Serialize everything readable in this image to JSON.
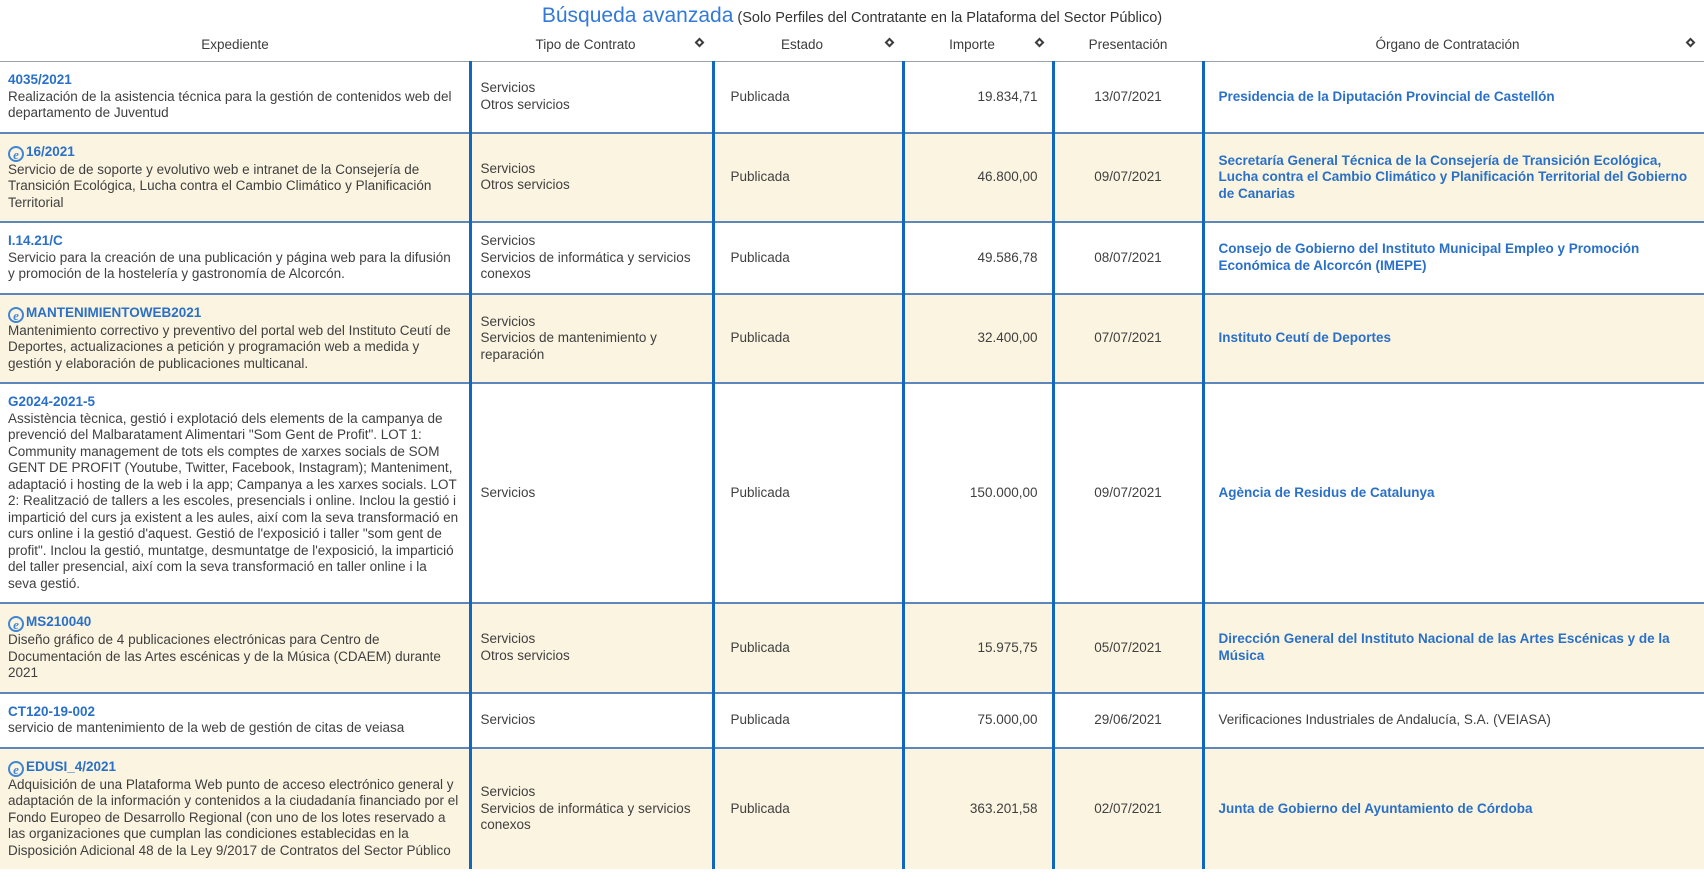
{
  "page": {
    "title": "Búsqueda avanzada",
    "subtitle": "(Solo Perfiles del Contratante en la Plataforma del Sector Público)"
  },
  "icons": {
    "electronic_glyph": "e",
    "sort_icon_shape": "diamond-outline"
  },
  "colors": {
    "title_blue": "#3379d8",
    "link_blue": "#2a70c8",
    "column_border_blue": "#0f67be",
    "row_separator_blue": "#5d87bb",
    "row_alt_background": "#fbf4e0",
    "text": "#3f3f3f"
  },
  "table": {
    "columns": [
      {
        "label": "Expediente",
        "sortable": false
      },
      {
        "label": "Tipo de Contrato",
        "sortable": true
      },
      {
        "label": "Estado",
        "sortable": true
      },
      {
        "label": "Importe",
        "sortable": true
      },
      {
        "label": "Presentación",
        "sortable": false
      },
      {
        "label": "Órgano de Contratación",
        "sortable": true
      }
    ],
    "rows": [
      {
        "expediente": "4035/2021",
        "electronic": false,
        "descripcion": "Realización de la asistencia técnica para la gestión de contenidos web del departamento de Juventud",
        "tipo": "Servicios\nOtros servicios",
        "estado": "Publicada",
        "importe": "19.834,71",
        "presentacion": "13/07/2021",
        "organo": "Presidencia de la Diputación Provincial de Castellón",
        "organo_link": true
      },
      {
        "expediente": "16/2021",
        "electronic": true,
        "descripcion": "Servicio de de soporte y evolutivo web e intranet de la Consejería de Transición Ecológica, Lucha contra el Cambio Climático y Planificación Territorial",
        "tipo": "Servicios\nOtros servicios",
        "estado": "Publicada",
        "importe": "46.800,00",
        "presentacion": "09/07/2021",
        "organo": "Secretaría General Técnica de la Consejería de Transición Ecológica, Lucha contra el Cambio Climático y Planificación Territorial del Gobierno de Canarias",
        "organo_link": true
      },
      {
        "expediente": "I.14.21/C",
        "electronic": false,
        "descripcion": "Servicio para la creación de una publicación y página web para la difusión y promoción de la hostelería y gastronomía de Alcorcón.",
        "tipo": "Servicios\nServicios de informática y servicios conexos",
        "estado": "Publicada",
        "importe": "49.586,78",
        "presentacion": "08/07/2021",
        "organo": "Consejo de Gobierno del Instituto Municipal Empleo y Promoción Económica de Alcorcón (IMEPE)",
        "organo_link": true
      },
      {
        "expediente": "MANTENIMIENTOWEB2021",
        "electronic": true,
        "descripcion": "Mantenimiento correctivo y preventivo del portal web del Instituto Ceutí de Deportes, actualizaciones a petición y programación web a medida y gestión y elaboración de publicaciones multicanal.",
        "tipo": "Servicios\nServicios de mantenimiento y reparación",
        "estado": "Publicada",
        "importe": "32.400,00",
        "presentacion": "07/07/2021",
        "organo": "Instituto Ceutí de Deportes",
        "organo_link": true
      },
      {
        "expediente": "G2024-2021-5",
        "electronic": false,
        "descripcion": "Assistència tècnica, gestió i explotació dels elements de la campanya de prevenció del Malbaratament Alimentari \"Som Gent de Profit\". LOT 1: Community management de tots els comptes de xarxes socials de SOM GENT DE PROFIT (Youtube, Twitter, Facebook, Instagram); Manteniment, adaptació i hosting de la web i la app; Campanya a les xarxes socials. LOT 2: Realització de tallers a les escoles, presencials i online. Inclou la gestió i impartició del curs ja existent a les aules, així com la seva transformació en curs online i la gestió d'aquest. Gestió de l'exposició i taller \"som gent de profit\". Inclou la gestió, muntatge, desmuntatge de l'exposició, la impartició del taller presencial, així com la seva transformació en taller online i la seva gestió.",
        "tipo": "Servicios",
        "estado": "Publicada",
        "importe": "150.000,00",
        "presentacion": "09/07/2021",
        "organo": "Agència de Residus de Catalunya",
        "organo_link": true
      },
      {
        "expediente": "MS210040",
        "electronic": true,
        "descripcion": "Diseño gráfico de 4 publicaciones electrónicas para Centro de Documentación de las Artes escénicas y de la Música (CDAEM) durante 2021",
        "tipo": "Servicios\nOtros servicios",
        "estado": "Publicada",
        "importe": "15.975,75",
        "presentacion": "05/07/2021",
        "organo": "Dirección General del Instituto Nacional de las Artes Escénicas y de la Música",
        "organo_link": true
      },
      {
        "expediente": "CT120-19-002",
        "electronic": false,
        "descripcion": "servicio de mantenimiento de la web de gestión de citas de veiasa",
        "tipo": "Servicios",
        "estado": "Publicada",
        "importe": "75.000,00",
        "presentacion": "29/06/2021",
        "organo": "Verificaciones Industriales de Andalucía, S.A. (VEIASA)",
        "organo_link": false
      },
      {
        "expediente": "EDUSI_4/2021",
        "electronic": true,
        "descripcion": "Adquisición de una Plataforma Web punto de acceso electrónico general y adaptación de la información y contenidos a la ciudadanía financiado por el Fondo Europeo de Desarrollo Regional (con uno de los lotes reservado a las organizaciones que cumplan las condiciones establecidas en la Disposición Adicional 48 de la Ley 9/2017 de Contratos del Sector Público",
        "tipo": "Servicios\nServicios de informática y servicios conexos",
        "estado": "Publicada",
        "importe": "363.201,58",
        "presentacion": "02/07/2021",
        "organo": "Junta de Gobierno del Ayuntamiento de Córdoba",
        "organo_link": true
      }
    ]
  }
}
